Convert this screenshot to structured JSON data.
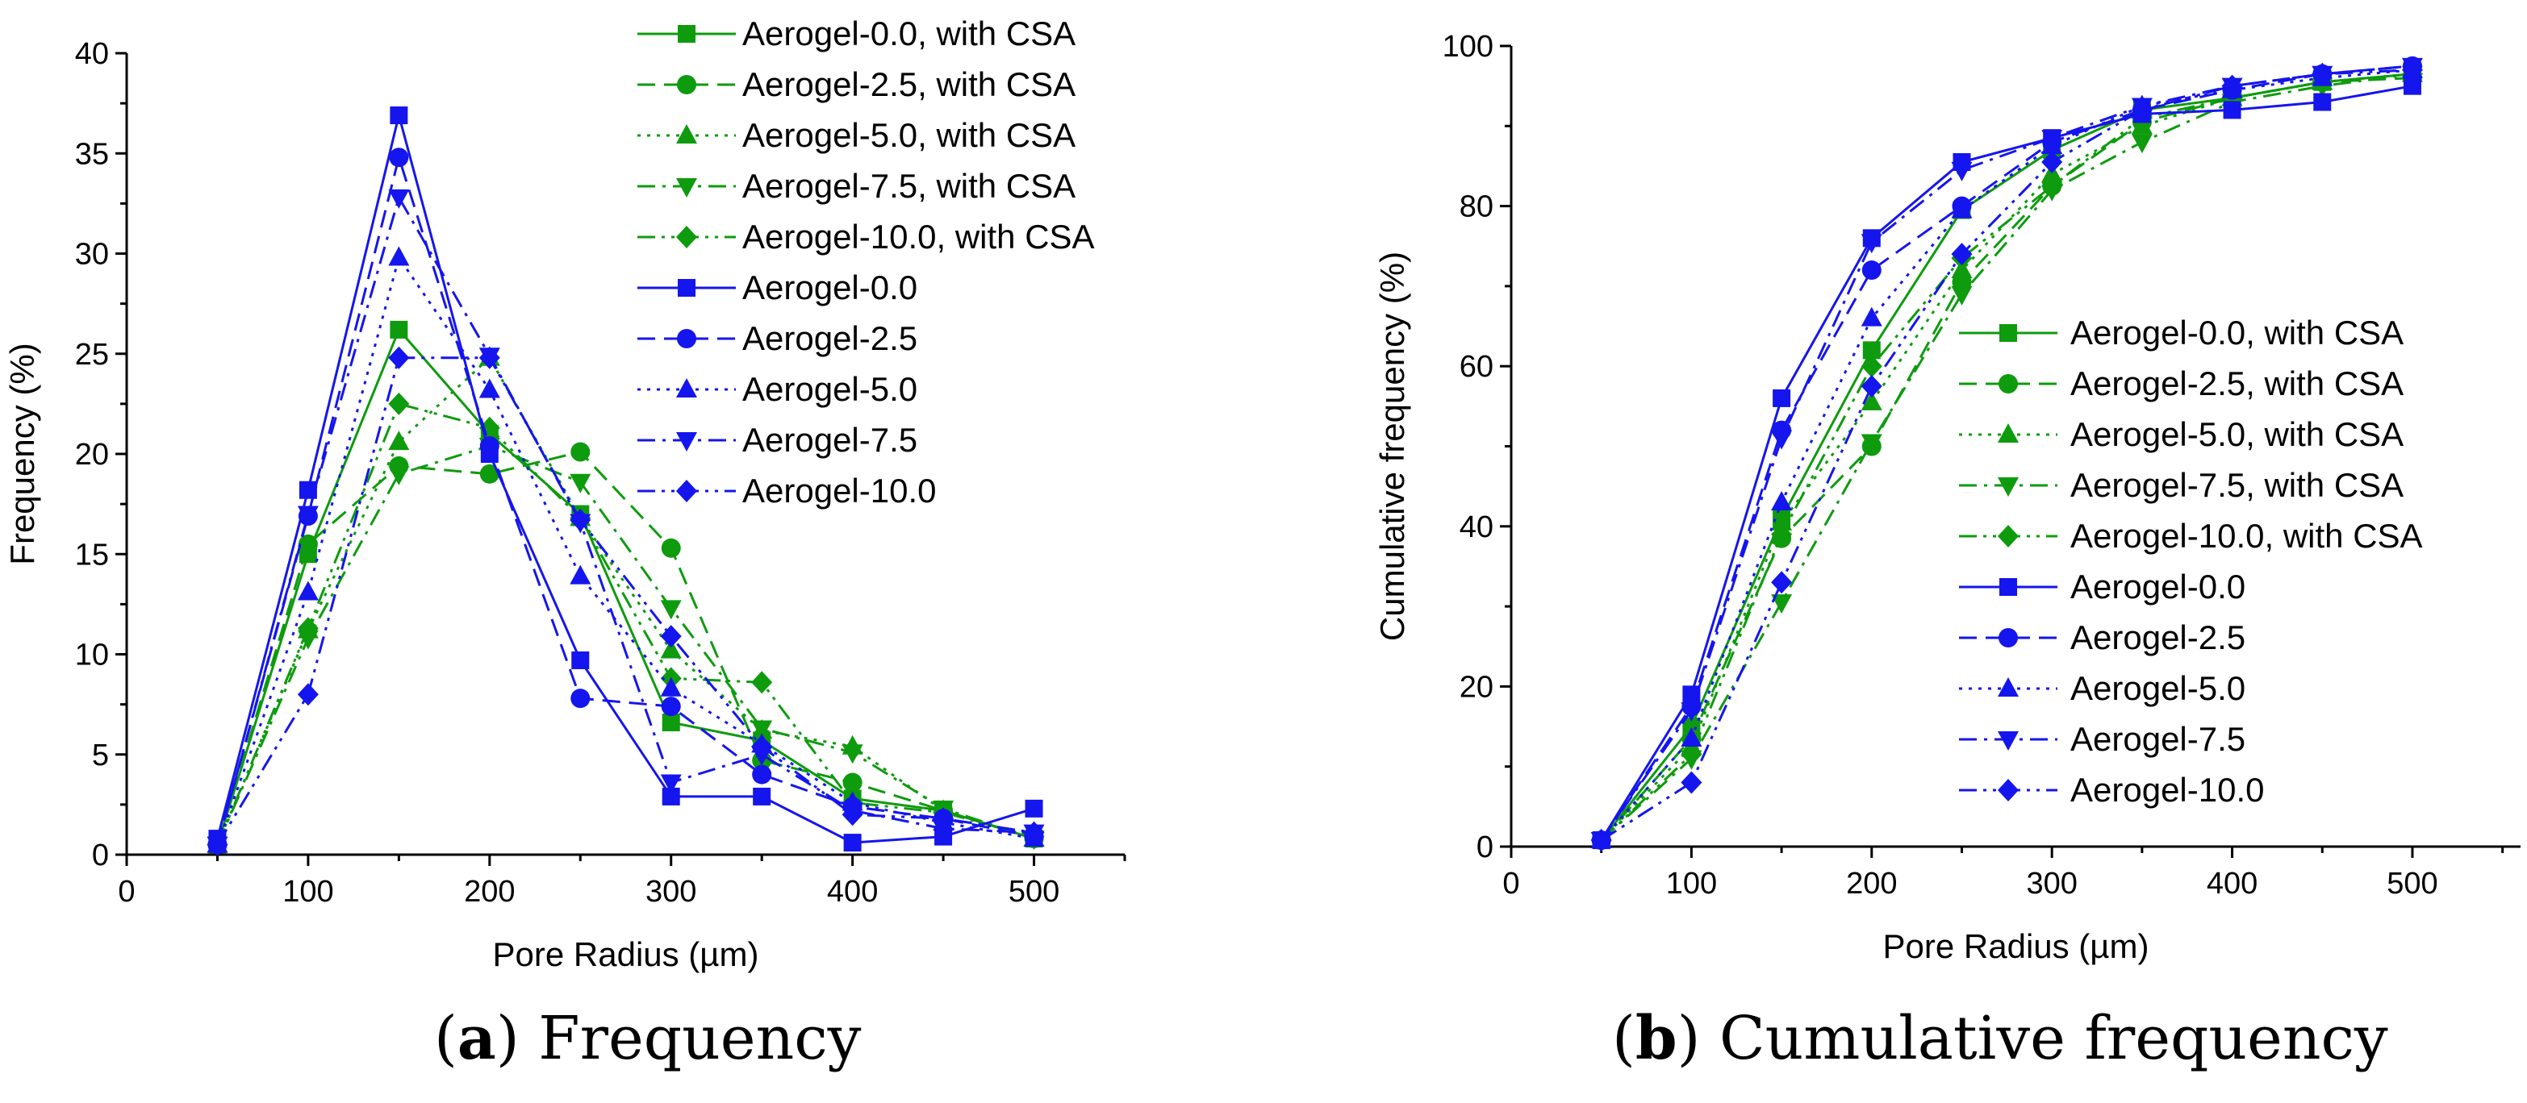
{
  "colors": {
    "green": "#0E9B0E",
    "blue": "#1515EE",
    "axis": "#000000"
  },
  "captions": [
    {
      "prefix": "(",
      "letter": "a",
      "suffix": ")",
      "text": "Frequency"
    },
    {
      "prefix": "(",
      "letter": "b",
      "suffix": ")",
      "text": "Cumulative frequency"
    }
  ],
  "chart_data": [
    {
      "id": "a",
      "type": "line",
      "title": "",
      "xlabel": "Pore Radius (µm)",
      "ylabel": "Frequency (%)",
      "xlim": [
        0,
        550
      ],
      "ylim": [
        0,
        40
      ],
      "xticks": [
        0,
        100,
        200,
        300,
        400,
        500
      ],
      "yticks": [
        0,
        5,
        10,
        15,
        20,
        25,
        30,
        35,
        40
      ],
      "grid": false,
      "legend_position": "top-right",
      "x": [
        50,
        100,
        150,
        200,
        250,
        300,
        350,
        400,
        450,
        500
      ],
      "series": [
        {
          "name": "Aerogel-0.0, with CSA",
          "color": "green",
          "dash": "solid",
          "marker": "square",
          "values": [
            0.5,
            15.0,
            26.2,
            21.0,
            17.0,
            6.6,
            5.7,
            2.8,
            2.2,
            0.8
          ]
        },
        {
          "name": "Aerogel-2.5, with CSA",
          "color": "green",
          "dash": "dash",
          "marker": "circle",
          "values": [
            0.5,
            15.5,
            19.4,
            19.0,
            20.1,
            15.3,
            4.7,
            3.6,
            2.2,
            0.8
          ]
        },
        {
          "name": "Aerogel-5.0, with CSA",
          "color": "green",
          "dash": "dot",
          "marker": "triangle-up",
          "values": [
            0.5,
            11.2,
            20.6,
            24.8,
            16.8,
            10.2,
            6.2,
            5.4,
            2.2,
            0.8
          ]
        },
        {
          "name": "Aerogel-7.5, with CSA",
          "color": "green",
          "dash": "dashdot",
          "marker": "triangle-down",
          "values": [
            0.5,
            10.8,
            19.0,
            20.4,
            18.6,
            12.3,
            6.3,
            5.1,
            2.3,
            0.8
          ]
        },
        {
          "name": "Aerogel-10.0, with CSA",
          "color": "green",
          "dash": "dashdotdot",
          "marker": "diamond",
          "values": [
            0.5,
            11.3,
            22.5,
            21.3,
            16.8,
            8.8,
            8.6,
            2.6,
            2.1,
            0.9
          ]
        },
        {
          "name": "Aerogel-0.0",
          "color": "blue",
          "dash": "solid",
          "marker": "square",
          "values": [
            0.8,
            18.2,
            36.9,
            20.0,
            9.7,
            2.9,
            2.9,
            0.6,
            0.9,
            2.3
          ]
        },
        {
          "name": "Aerogel-2.5",
          "color": "blue",
          "dash": "dash",
          "marker": "circle",
          "values": [
            0.5,
            16.9,
            34.8,
            20.4,
            7.8,
            7.4,
            4.0,
            2.4,
            1.8,
            0.9
          ]
        },
        {
          "name": "Aerogel-5.0",
          "color": "blue",
          "dash": "dot",
          "marker": "triangle-up",
          "values": [
            0.5,
            13.1,
            29.8,
            23.2,
            13.9,
            8.3,
            5.5,
            2.6,
            1.6,
            0.8
          ]
        },
        {
          "name": "Aerogel-7.5",
          "color": "blue",
          "dash": "dashdot",
          "marker": "triangle-down",
          "values": [
            0.5,
            17.0,
            32.8,
            24.9,
            16.6,
            3.6,
            5.0,
            2.2,
            1.3,
            1.1
          ]
        },
        {
          "name": "Aerogel-10.0",
          "color": "blue",
          "dash": "dashdotdot",
          "marker": "diamond",
          "values": [
            0.5,
            8.0,
            24.8,
            24.8,
            16.7,
            10.9,
            5.4,
            2.0,
            1.8,
            1.1
          ]
        }
      ]
    },
    {
      "id": "b",
      "type": "line",
      "title": "",
      "xlabel": "Pore Radius (µm)",
      "ylabel": "Cumulative frequency (%)",
      "xlim": [
        0,
        560
      ],
      "ylim": [
        0,
        100
      ],
      "xticks": [
        0,
        100,
        200,
        300,
        400,
        500
      ],
      "yticks": [
        0,
        20,
        40,
        60,
        80,
        100
      ],
      "grid": false,
      "legend_position": "center-right",
      "x": [
        50,
        100,
        150,
        200,
        250,
        300,
        350,
        400,
        450,
        500
      ],
      "series": [
        {
          "name": "Aerogel-0.0, with CSA",
          "color": "green",
          "dash": "solid",
          "marker": "square",
          "values": [
            0.8,
            15.0,
            41.0,
            62.0,
            79.5,
            87.0,
            92.0,
            93.5,
            95.5,
            96.5
          ]
        },
        {
          "name": "Aerogel-2.5, with CSA",
          "color": "green",
          "dash": "dash",
          "marker": "circle",
          "values": [
            0.8,
            13.5,
            38.5,
            50.0,
            70.5,
            82.5,
            90.5,
            93.5,
            95.5,
            96.0
          ]
        },
        {
          "name": "Aerogel-5.0, with CSA",
          "color": "green",
          "dash": "dot",
          "marker": "triangle-up",
          "values": [
            0.8,
            12.5,
            40.5,
            55.5,
            72.0,
            84.0,
            90.0,
            93.5,
            95.5,
            96.5
          ]
        },
        {
          "name": "Aerogel-7.5, with CSA",
          "color": "green",
          "dash": "dashdot",
          "marker": "triangle-down",
          "values": [
            0.8,
            11.0,
            30.5,
            50.5,
            69.0,
            82.0,
            88.0,
            93.0,
            95.0,
            96.5
          ]
        },
        {
          "name": "Aerogel-10.0, with CSA",
          "color": "green",
          "dash": "dashdotdot",
          "marker": "diamond",
          "values": [
            0.8,
            11.5,
            39.0,
            60.0,
            73.5,
            82.5,
            91.0,
            93.5,
            95.5,
            96.5
          ]
        },
        {
          "name": "Aerogel-0.0",
          "color": "blue",
          "dash": "solid",
          "marker": "square",
          "values": [
            0.8,
            19.0,
            56.0,
            76.0,
            85.5,
            88.5,
            91.5,
            92.0,
            93.0,
            95.0
          ]
        },
        {
          "name": "Aerogel-2.5",
          "color": "blue",
          "dash": "dash",
          "marker": "circle",
          "values": [
            0.8,
            17.5,
            52.0,
            72.0,
            80.0,
            88.0,
            92.0,
            94.5,
            96.5,
            97.5
          ]
        },
        {
          "name": "Aerogel-5.0",
          "color": "blue",
          "dash": "dot",
          "marker": "triangle-up",
          "values": [
            0.8,
            13.5,
            43.0,
            66.0,
            79.5,
            87.5,
            92.5,
            94.5,
            96.0,
            97.0
          ]
        },
        {
          "name": "Aerogel-7.5",
          "color": "blue",
          "dash": "dashdot",
          "marker": "triangle-down",
          "values": [
            0.8,
            17.0,
            51.0,
            75.5,
            84.5,
            88.5,
            92.5,
            95.0,
            96.5,
            97.5
          ]
        },
        {
          "name": "Aerogel-10.0",
          "color": "blue",
          "dash": "dashdotdot",
          "marker": "diamond",
          "values": [
            0.8,
            8.0,
            33.0,
            57.5,
            74.0,
            85.5,
            92.0,
            95.0,
            96.5,
            97.0
          ]
        }
      ]
    }
  ]
}
